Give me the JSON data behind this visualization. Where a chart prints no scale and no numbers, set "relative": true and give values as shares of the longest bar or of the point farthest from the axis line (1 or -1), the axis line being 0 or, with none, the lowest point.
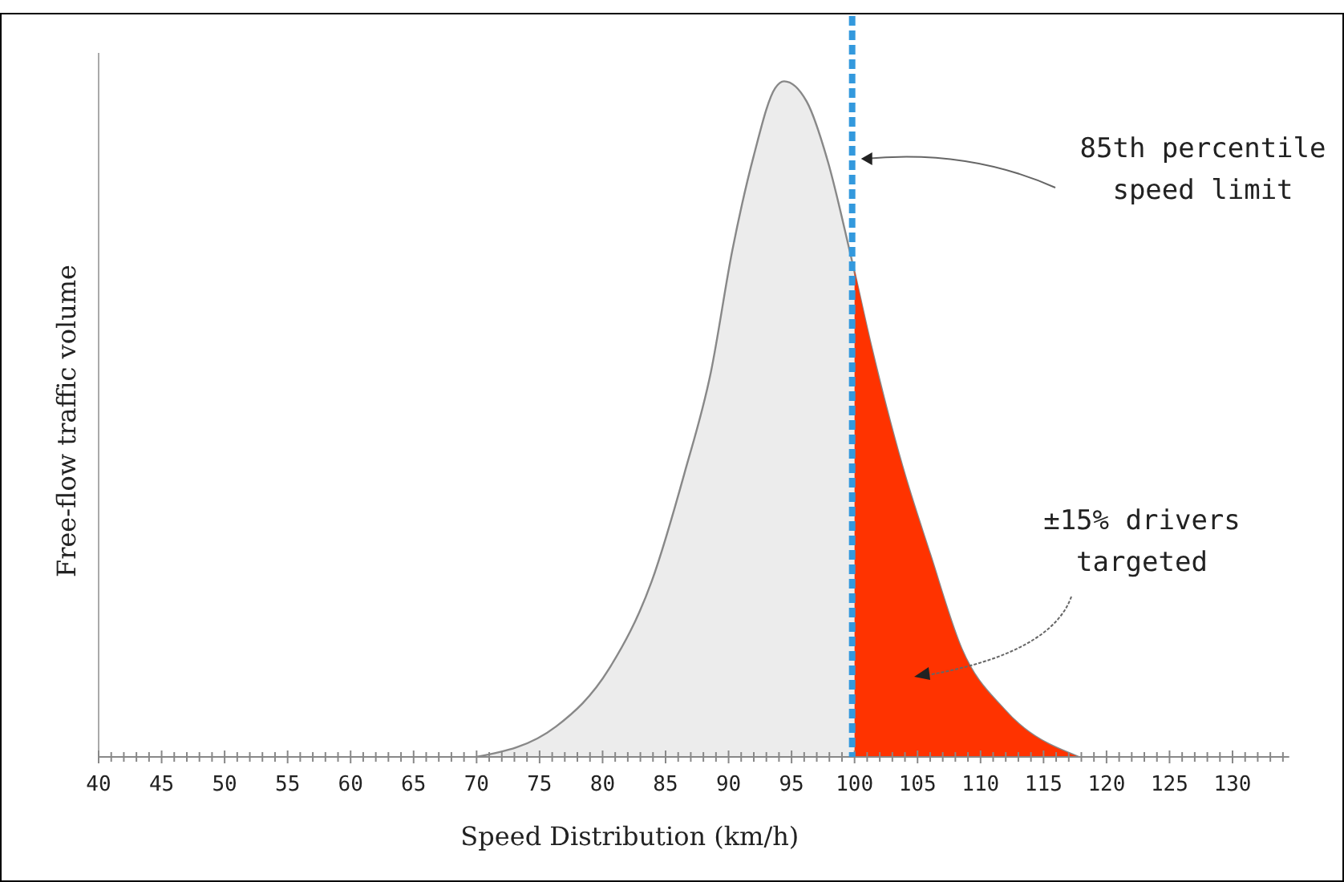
{
  "chart_data": {
    "type": "area",
    "relative": true,
    "xlabel": "Speed Distribution (km/h)",
    "ylabel": "Free-flow traffic volume",
    "xlim": [
      40,
      134.5
    ],
    "xticks": [
      40,
      {
        "value": 41,
        "label": null
      },
      {
        "value": 42,
        "label": null
      },
      {
        "value": 43,
        "label": null
      },
      {
        "value": 44,
        "label": null
      },
      45,
      {
        "value": 46,
        "label": null
      },
      {
        "value": 47,
        "label": null
      },
      {
        "value": 48,
        "label": null
      },
      {
        "value": 49,
        "label": null
      },
      50,
      {
        "value": 51,
        "label": null
      },
      {
        "value": 52,
        "label": null
      },
      {
        "value": 53,
        "label": null
      },
      {
        "value": 54,
        "label": null
      },
      55,
      {
        "value": 56,
        "label": null
      },
      {
        "value": 57,
        "label": null
      },
      {
        "value": 58,
        "label": null
      },
      {
        "value": 59,
        "label": null
      },
      60,
      {
        "value": 61,
        "label": null
      },
      {
        "value": 62,
        "label": null
      },
      {
        "value": 63,
        "label": null
      },
      {
        "value": 64,
        "label": null
      },
      65,
      {
        "value": 66,
        "label": null
      },
      {
        "value": 67,
        "label": null
      },
      {
        "value": 68,
        "label": null
      },
      {
        "value": 69,
        "label": null
      },
      70,
      {
        "value": 71,
        "label": null
      },
      {
        "value": 72,
        "label": null
      },
      {
        "value": 73,
        "label": null
      },
      {
        "value": 74,
        "label": null
      },
      75,
      {
        "value": 76,
        "label": null
      },
      {
        "value": 77,
        "label": null
      },
      {
        "value": 78,
        "label": null
      },
      {
        "value": 79,
        "label": null
      },
      80,
      {
        "value": 81,
        "label": null
      },
      {
        "value": 82,
        "label": null
      },
      {
        "value": 83,
        "label": null
      },
      {
        "value": 84,
        "label": null
      },
      85,
      {
        "value": 86,
        "label": null
      },
      {
        "value": 87,
        "label": null
      },
      {
        "value": 88,
        "label": null
      },
      {
        "value": 89,
        "label": null
      },
      90,
      {
        "value": 91,
        "label": null
      },
      {
        "value": 92,
        "label": null
      },
      {
        "value": 93,
        "label": null
      },
      {
        "value": 94,
        "label": null
      },
      95,
      {
        "value": 96,
        "label": null
      },
      {
        "value": 97,
        "label": null
      },
      {
        "value": 98,
        "label": null
      },
      {
        "value": 99,
        "label": null
      },
      100,
      {
        "value": 101,
        "label": null
      },
      {
        "value": 102,
        "label": null
      },
      {
        "value": 103,
        "label": null
      },
      {
        "value": 104,
        "label": null
      },
      105,
      {
        "value": 106,
        "label": null
      },
      {
        "value": 107,
        "label": null
      },
      {
        "value": 108,
        "label": null
      },
      {
        "value": 109,
        "label": null
      },
      110,
      {
        "value": 111,
        "label": null
      },
      {
        "value": 112,
        "label": null
      },
      {
        "value": 113,
        "label": null
      },
      {
        "value": 114,
        "label": null
      },
      115,
      {
        "value": 116,
        "label": null
      },
      {
        "value": 117,
        "label": null
      },
      {
        "value": 118,
        "label": null
      },
      {
        "value": 119,
        "label": null
      },
      120,
      {
        "value": 121,
        "label": null
      },
      {
        "value": 122,
        "label": null
      },
      {
        "value": 123,
        "label": null
      },
      {
        "value": 124,
        "label": null
      },
      125,
      {
        "value": 126,
        "label": null
      },
      {
        "value": 127,
        "label": null
      },
      {
        "value": 128,
        "label": null
      },
      {
        "value": 129,
        "label": null
      },
      130,
      {
        "value": 131,
        "label": null
      },
      {
        "value": 132,
        "label": null
      },
      {
        "value": 133,
        "label": null
      },
      {
        "value": 134,
        "label": null
      }
    ],
    "series": [
      {
        "color": "#ececec",
        "x": [
          70,
          76.3,
          80.5,
          83.9,
          86.5,
          88.6,
          90.3,
          92,
          93.7,
          94.4,
          96.2,
          97.9,
          99.6,
          101.3,
          103.8,
          106,
          108.5,
          111.9,
          117.8
        ],
        "values": [
          0,
          0.045,
          0.13,
          0.26,
          0.42,
          0.57,
          0.75,
          0.89,
          0.99,
          1,
          0.97,
          0.88,
          0.75,
          0.61,
          0.43,
          0.3,
          0.16,
          0.07,
          0
        ]
      },
      {
        "color": "#ff3300",
        "x": [
          100,
          101.3,
          103.8,
          106,
          108.5,
          111.9,
          117.8
        ],
        "values": [
          0.72,
          0.61,
          0.43,
          0.3,
          0.16,
          0.07,
          0
        ]
      }
    ],
    "ref_lines": [
      {
        "axis": "x",
        "value": 100,
        "label": "85th percentile speed limit",
        "color": "#3399dd",
        "line_style": "dashed"
      }
    ],
    "annotations": [
      "±15% drivers targeted"
    ]
  }
}
